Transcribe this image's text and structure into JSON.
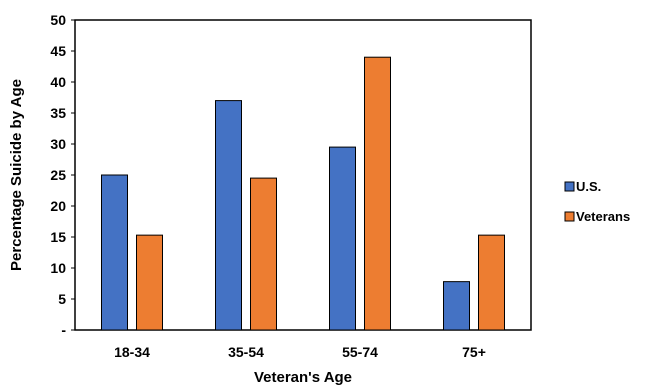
{
  "chart_data": {
    "type": "bar",
    "title": "",
    "xlabel": "Veteran's Age",
    "ylabel": "Percentage Suicide by Age",
    "categories": [
      "18-34",
      "35-54",
      "55-74",
      "75+"
    ],
    "series": [
      {
        "name": "U.S.",
        "values": [
          25,
          37,
          29.5,
          7.8
        ],
        "color": "#4472C4"
      },
      {
        "name": "Veterans",
        "values": [
          15.3,
          24.5,
          44,
          15.3
        ],
        "color": "#ED7D31"
      }
    ],
    "ylim": [
      0,
      50
    ],
    "yticks": [
      0,
      5,
      10,
      15,
      20,
      25,
      30,
      35,
      40,
      45,
      50
    ],
    "ytick_labels": [
      "-",
      "5",
      "10",
      "15",
      "20",
      "25",
      "30",
      "35",
      "40",
      "45",
      "50"
    ],
    "grid": false,
    "legend_position": "right"
  }
}
